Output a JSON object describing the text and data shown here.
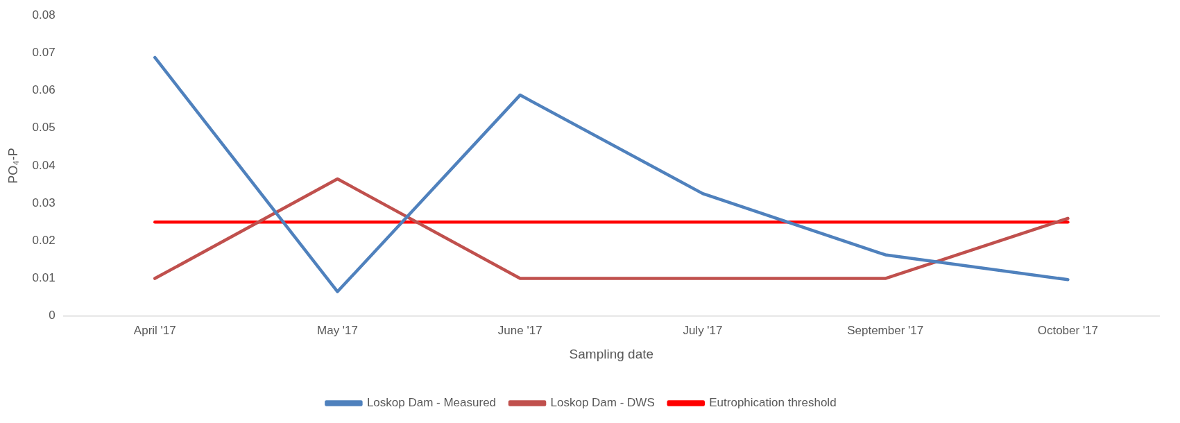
{
  "chart_data": {
    "type": "line",
    "xlabel": "Sampling date",
    "ylabel": "PO₄-P",
    "categories": [
      "April '17",
      "May '17",
      "June '17",
      "July '17",
      "September '17",
      "October '17"
    ],
    "series": [
      {
        "name": "Loskop Dam - Measured",
        "color": "#4f81bd",
        "values": [
          0.0688,
          0.0065,
          0.0588,
          0.0326,
          0.0163,
          0.0097
        ]
      },
      {
        "name": "Loskop Dam - DWS",
        "color": "#c0504d",
        "values": [
          0.01,
          0.0365,
          0.01,
          0.01,
          0.01,
          0.026
        ]
      },
      {
        "name": "Eutrophication threshold",
        "color": "#ff0000",
        "values": [
          0.025,
          0.025,
          0.025,
          0.025,
          0.025,
          0.025
        ]
      }
    ],
    "ylim": [
      0,
      0.08
    ],
    "yticks": [
      0,
      0.01,
      0.02,
      0.03,
      0.04,
      0.05,
      0.06,
      0.07,
      0.08
    ],
    "legend": "bottom",
    "marker": "none",
    "line_style": "solid"
  }
}
